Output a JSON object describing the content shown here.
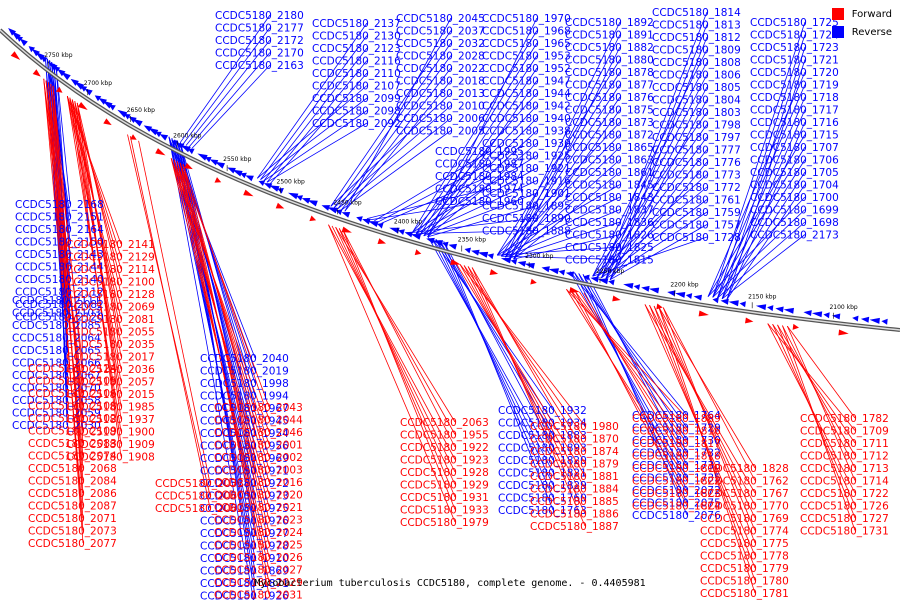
{
  "title": "Mycobacterium tuberculosis CCDC5180, complete genome. - 0.4405981",
  "colors": {
    "forward": "#ff0000",
    "reverse": "#0000ff",
    "backbone": "#777777"
  },
  "legend": [
    {
      "label": "Forward",
      "color": "#ff0000"
    },
    {
      "label": "Reverse",
      "color": "#0000ff"
    }
  ],
  "ticks": [
    "2750 kbp",
    "2700 kbp",
    "2650 kbp",
    "2600 kbp",
    "2550 kbp",
    "2500 kbp",
    "2450 kbp",
    "2400 kbp",
    "2350 kbp",
    "2300 kbp",
    "2250 kbp",
    "2200 kbp",
    "2150 kbp",
    "2100 kbp"
  ],
  "reverse_labels": [
    "CCDC5180_2180",
    "CCDC5180_2177",
    "CCDC5180_2172",
    "CCDC5180_2170",
    "CCDC5180_2163",
    "CCDC5180_2137",
    "CCDC5180_2130",
    "CCDC5180_2123",
    "CCDC5180_2116",
    "CCDC5180_2110",
    "CCDC5180_2107",
    "CCDC5180_2099",
    "CCDC5180_2098",
    "CCDC5180_2092",
    "CCDC5180_2045",
    "CCDC5180_2037",
    "CCDC5180_2032",
    "CCDC5180_2028",
    "CCDC5180_2022",
    "CCDC5180_2018",
    "CCDC5180_2013",
    "CCDC5180_2010",
    "CCDC5180_2006",
    "CCDC5180_2005",
    "CCDC5180_1970",
    "CCDC5180_1968",
    "CCDC5180_1965",
    "CCDC5180_1953",
    "CCDC5180_1952",
    "CCDC5180_1947",
    "CCDC5180_1944",
    "CCDC5180_1942",
    "CCDC5180_1940",
    "CCDC5180_1938",
    "CCDC5180_1930",
    "CCDC5180_1925",
    "CCDC5180_1921",
    "CCDC5180_1916",
    "CCDC5180_1901",
    "CCDC5180_1895",
    "CCDC5180_1890",
    "CCDC5180_1888",
    "CCDC5180_1995",
    "CCDC5180_1987",
    "CCDC5180_1984",
    "CCDC5180_1974",
    "CCDC5180_1960",
    "CCDC5180_1892",
    "CCDC5180_1891",
    "CCDC5180_1882",
    "CCDC5180_1880",
    "CCDC5180_1878",
    "CCDC5180_1877",
    "CCDC5180_1876",
    "CCDC5180_1875",
    "CCDC5180_1873",
    "CCDC5180_1872",
    "CCDC5180_1865",
    "CCDC5180_1863",
    "CCDC5180_1861",
    "CCDC5180_1845",
    "CCDC5180_1843",
    "CCDC5180_1837",
    "CCDC5180_1836",
    "CCDC5180_1826",
    "CCDC5180_1825",
    "CCDC5180_1815",
    "CCDC5180_1814",
    "CCDC5180_1813",
    "CCDC5180_1812",
    "CCDC5180_1809",
    "CCDC5180_1808",
    "CCDC5180_1806",
    "CCDC5180_1805",
    "CCDC5180_1804",
    "CCDC5180_1803",
    "CCDC5180_1798",
    "CCDC5180_1797",
    "CCDC5180_1777",
    "CCDC5180_1776",
    "CCDC5180_1773",
    "CCDC5180_1772",
    "CCDC5180_1761",
    "CCDC5180_1759",
    "CCDC5180_1757",
    "CCDC5180_1728",
    "CCDC5180_1725",
    "CCDC5180_1724",
    "CCDC5180_1723",
    "CCDC5180_1721",
    "CCDC5180_1720",
    "CCDC5180_1719",
    "CCDC5180_1718",
    "CCDC5180_1717",
    "CCDC5180_1716",
    "CCDC5180_1715",
    "CCDC5180_1707",
    "CCDC5180_1706",
    "CCDC5180_1705",
    "CCDC5180_1704",
    "CCDC5180_1700",
    "CCDC5180_1699",
    "CCDC5180_1698",
    "CCDC5180_2173",
    "CCDC5180_2168",
    "CCDC5180_2151",
    "CCDC5180_2164",
    "CCDC5180_2150",
    "CCDC5180_2143",
    "CCDC5180_2144",
    "CCDC5180_2140",
    "CCDC5180_2112",
    "CCDC5180_2082",
    "CCDC5180_2120",
    "CCDC5180_2111",
    "CCDC5180_2103",
    "CCDC5180_2085",
    "CCDC5180_2064",
    "CCDC5180_2065",
    "CCDC5180_2066",
    "CCDC5180_2067",
    "CCDC5180_2070",
    "CCDC5180_2058",
    "CCDC5180_2059",
    "CCDC5180_2030",
    "CCDC5180_2040",
    "CCDC5180_2019",
    "CCDC5180_1998",
    "CCDC5180_1994",
    "CCDC5180_1967",
    "CCDC5180_1945",
    "CCDC5180_1954",
    "CCDC5180_1956",
    "CCDC5180_1969",
    "CCDC5180_1971",
    "CCDC5180_1972",
    "CCDC5180_1973",
    "CCDC5180_1975",
    "CCDC5180_1976",
    "CCDC5180_1977",
    "CCDC5180_1978",
    "CCDC5180_1910",
    "CCDC5180_1869",
    "CCDC5180_1871",
    "CCDC5180_1926",
    "CCDC5180_1927",
    "CCDC5180_1932",
    "CCDC5180_1934",
    "CCDC5180_1883",
    "CCDC5180_1893",
    "CCDC5180_1820",
    "CCDC5180_1821",
    "CCDC5180_1829",
    "CCDC5180_1760",
    "CCDC5180_1763",
    "CCDC5180_1764",
    "CCDC5180_1729",
    "CCDC5180_1730",
    "CCDC5180_1732",
    "CCDC5180_1733",
    "CCDC5180_1735",
    "CCDC5180_2072",
    "CCDC5180_2075",
    "CCDC5180_2076"
  ],
  "forward_labels": [
    "CCDC5180_2141",
    "CCDC5180_2129",
    "CCDC5180_2114",
    "CCDC5180_2100",
    "CCDC5180_2128",
    "CCDC5180_2069",
    "CCDC5180_2081",
    "CCDC5180_2055",
    "CCDC5180_2035",
    "CCDC5180_2017",
    "CCDC5180_2036",
    "CCDC5180_2057",
    "CCDC5180_2015",
    "CCDC5180_1985",
    "CCDC5180_1937",
    "CCDC5180_1900",
    "CCDC5180_1909",
    "CCDC5180_1908",
    "CCDC5180_2124",
    "CCDC5180_2105",
    "CCDC5180_2106",
    "CCDC5180_2108",
    "CCDC5180_2102",
    "CCDC5180_2109",
    "CCDC5180_2083",
    "CCDC5180_2074",
    "CCDC5180_2068",
    "CCDC5180_2084",
    "CCDC5180_2086",
    "CCDC5180_2087",
    "CCDC5180_2071",
    "CCDC5180_2073",
    "CCDC5180_2077",
    "CCDC5180_2043",
    "CCDC5180_2044",
    "CCDC5180_2046",
    "CCDC5180_2001",
    "CCDC5180_2002",
    "CCDC5180_2003",
    "CCDC5180_2016",
    "CCDC5180_2020",
    "CCDC5180_2021",
    "CCDC5180_2023",
    "CCDC5180_2024",
    "CCDC5180_2025",
    "CCDC5180_2026",
    "CCDC5180_2027",
    "CCDC5180_2029",
    "CCDC5180_2031",
    "CCDC5180_2033",
    "CCDC5180_2060",
    "CCDC5180_2062",
    "CCDC5180_2063",
    "CCDC5180_1955",
    "CCDC5180_1922",
    "CCDC5180_1923",
    "CCDC5180_1928",
    "CCDC5180_1929",
    "CCDC5180_1931",
    "CCDC5180_1933",
    "CCDC5180_1979",
    "CCDC5180_1980",
    "CCDC5180_1870",
    "CCDC5180_1874",
    "CCDC5180_1879",
    "CCDC5180_1881",
    "CCDC5180_1884",
    "CCDC5180_1885",
    "CCDC5180_1886",
    "CCDC5180_1887",
    "CCDC5180_1889",
    "CCDC5180_1816",
    "CCDC5180_1817",
    "CCDC5180_1818",
    "CCDC5180_1819",
    "CCDC5180_1822",
    "CCDC5180_1823",
    "CCDC5180_1824",
    "CCDC5180_1828",
    "CCDC5180_1762",
    "CCDC5180_1767",
    "CCDC5180_1770",
    "CCDC5180_1769",
    "CCDC5180_1774",
    "CCDC5180_1775",
    "CCDC5180_1778",
    "CCDC5180_1779",
    "CCDC5180_1780",
    "CCDC5180_1781",
    "CCDC5180_1782",
    "CCDC5180_1709",
    "CCDC5180_1711",
    "CCDC5180_1712",
    "CCDC5180_1713",
    "CCDC5180_1714",
    "CCDC5180_1722",
    "CCDC5180_1726",
    "CCDC5180_1727",
    "CCDC5180_1731",
    "CCDC5180_1734"
  ]
}
